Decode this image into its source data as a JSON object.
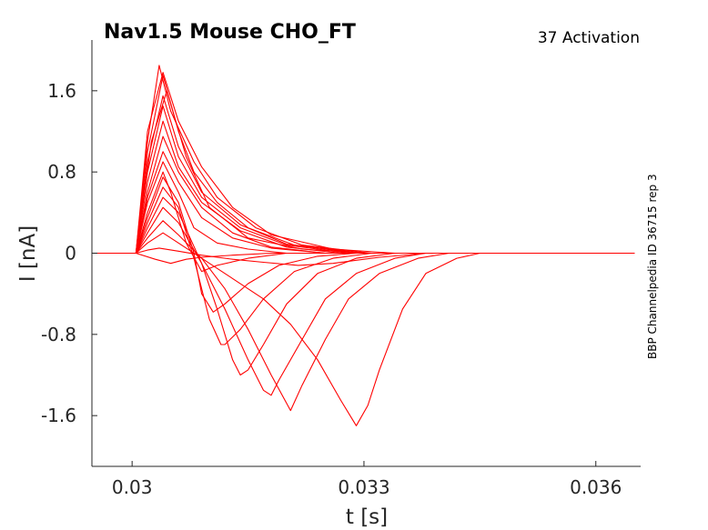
{
  "chart_data": {
    "type": "line",
    "title": "Nav1.5  Mouse  CHO_FT",
    "subtitle": "37  Activation",
    "side_note": "BBP Channelpedia ID 36715 rep 3",
    "xlabel": "t [s]",
    "ylabel": "I [nA]",
    "xlim": [
      0.02948,
      0.03658
    ],
    "ylim": [
      -2.1,
      2.1
    ],
    "x_ticks": [
      0.03,
      0.033,
      0.036
    ],
    "x_tick_labels": [
      "0.03",
      "0.033",
      "0.036"
    ],
    "y_ticks": [
      1.6,
      0.8,
      0,
      -0.8,
      -1.6
    ],
    "y_tick_labels": [
      "1.6",
      "0.8",
      "0",
      "-0.8",
      "-1.6"
    ],
    "grid": false,
    "line_color": "#ff0000",
    "series": [
      {
        "values": [
          [
            0.0295,
            0
          ],
          [
            0.03005,
            0
          ],
          [
            0.0303,
            -0.06
          ],
          [
            0.0305,
            -0.1
          ],
          [
            0.0307,
            -0.06
          ],
          [
            0.0309,
            -0.04
          ],
          [
            0.0313,
            -0.02
          ],
          [
            0.0318,
            0
          ],
          [
            0.0365,
            0
          ]
        ]
      },
      {
        "values": [
          [
            0.0295,
            0
          ],
          [
            0.03005,
            0
          ],
          [
            0.0302,
            0.03
          ],
          [
            0.03035,
            0.05
          ],
          [
            0.0306,
            0.02
          ],
          [
            0.0309,
            -0.02
          ],
          [
            0.0313,
            -0.06
          ],
          [
            0.0317,
            -0.09
          ],
          [
            0.03215,
            -0.12
          ],
          [
            0.0326,
            -0.1
          ],
          [
            0.0332,
            -0.04
          ],
          [
            0.0338,
            0
          ],
          [
            0.0365,
            0
          ]
        ]
      },
      {
        "values": [
          [
            0.0295,
            0
          ],
          [
            0.03005,
            0
          ],
          [
            0.0302,
            0.1
          ],
          [
            0.0304,
            0.2
          ],
          [
            0.0306,
            0.1
          ],
          [
            0.0309,
            -0.05
          ],
          [
            0.0313,
            -0.25
          ],
          [
            0.0317,
            -0.45
          ],
          [
            0.03205,
            -0.7
          ],
          [
            0.0324,
            -1.05
          ],
          [
            0.0327,
            -1.45
          ],
          [
            0.0329,
            -1.7
          ],
          [
            0.03305,
            -1.5
          ],
          [
            0.0332,
            -1.15
          ],
          [
            0.0335,
            -0.55
          ],
          [
            0.0338,
            -0.2
          ],
          [
            0.0342,
            -0.05
          ],
          [
            0.0345,
            0
          ],
          [
            0.0365,
            0
          ]
        ]
      },
      {
        "values": [
          [
            0.0295,
            0
          ],
          [
            0.03005,
            0
          ],
          [
            0.0302,
            0.15
          ],
          [
            0.0304,
            0.32
          ],
          [
            0.0306,
            0.18
          ],
          [
            0.0309,
            -0.05
          ],
          [
            0.0312,
            -0.35
          ],
          [
            0.0315,
            -0.75
          ],
          [
            0.0318,
            -1.2
          ],
          [
            0.03205,
            -1.55
          ],
          [
            0.0322,
            -1.3
          ],
          [
            0.0325,
            -0.85
          ],
          [
            0.0328,
            -0.45
          ],
          [
            0.0332,
            -0.2
          ],
          [
            0.0337,
            -0.05
          ],
          [
            0.0341,
            0
          ],
          [
            0.0365,
            0
          ]
        ]
      },
      {
        "values": [
          [
            0.0295,
            0
          ],
          [
            0.03005,
            0
          ],
          [
            0.0302,
            0.2
          ],
          [
            0.0304,
            0.45
          ],
          [
            0.0306,
            0.3
          ],
          [
            0.0309,
            -0.1
          ],
          [
            0.0312,
            -0.55
          ],
          [
            0.0315,
            -1.05
          ],
          [
            0.0317,
            -1.35
          ],
          [
            0.0318,
            -1.4
          ],
          [
            0.0319,
            -1.25
          ],
          [
            0.0322,
            -0.85
          ],
          [
            0.0325,
            -0.45
          ],
          [
            0.0329,
            -0.2
          ],
          [
            0.0334,
            -0.05
          ],
          [
            0.0338,
            0
          ],
          [
            0.0365,
            0
          ]
        ]
      },
      {
        "values": [
          [
            0.0295,
            0
          ],
          [
            0.03005,
            0
          ],
          [
            0.0302,
            0.25
          ],
          [
            0.0304,
            0.55
          ],
          [
            0.0306,
            0.4
          ],
          [
            0.0309,
            -0.1
          ],
          [
            0.0311,
            -0.55
          ],
          [
            0.0313,
            -1.05
          ],
          [
            0.0314,
            -1.2
          ],
          [
            0.0315,
            -1.15
          ],
          [
            0.0317,
            -0.9
          ],
          [
            0.032,
            -0.5
          ],
          [
            0.0324,
            -0.2
          ],
          [
            0.0329,
            -0.05
          ],
          [
            0.0334,
            0
          ],
          [
            0.0365,
            0
          ]
        ]
      },
      {
        "values": [
          [
            0.0295,
            0
          ],
          [
            0.03005,
            0
          ],
          [
            0.0302,
            0.3
          ],
          [
            0.0304,
            0.65
          ],
          [
            0.0306,
            0.45
          ],
          [
            0.0308,
            -0.05
          ],
          [
            0.031,
            -0.65
          ],
          [
            0.03115,
            -0.9
          ],
          [
            0.0312,
            -0.9
          ],
          [
            0.0314,
            -0.75
          ],
          [
            0.0317,
            -0.45
          ],
          [
            0.0321,
            -0.18
          ],
          [
            0.0326,
            -0.05
          ],
          [
            0.0331,
            0
          ],
          [
            0.0365,
            0
          ]
        ]
      },
      {
        "values": [
          [
            0.0295,
            0
          ],
          [
            0.03005,
            0
          ],
          [
            0.0302,
            0.35
          ],
          [
            0.0304,
            0.75
          ],
          [
            0.0306,
            0.5
          ],
          [
            0.0308,
            0
          ],
          [
            0.0309,
            -0.4
          ],
          [
            0.03105,
            -0.58
          ],
          [
            0.0312,
            -0.5
          ],
          [
            0.0315,
            -0.3
          ],
          [
            0.0319,
            -0.12
          ],
          [
            0.0324,
            -0.03
          ],
          [
            0.0329,
            0
          ],
          [
            0.0365,
            0
          ]
        ]
      },
      {
        "values": [
          [
            0.0295,
            0
          ],
          [
            0.03005,
            0
          ],
          [
            0.0302,
            0.4
          ],
          [
            0.0304,
            0.8
          ],
          [
            0.0305,
            0.6
          ],
          [
            0.0307,
            0.1
          ],
          [
            0.0309,
            -0.18
          ],
          [
            0.0311,
            -0.12
          ],
          [
            0.0315,
            -0.05
          ],
          [
            0.032,
            0
          ],
          [
            0.0365,
            0
          ]
        ]
      },
      {
        "values": [
          [
            0.0295,
            0
          ],
          [
            0.03005,
            0
          ],
          [
            0.0302,
            0.5
          ],
          [
            0.0304,
            0.9
          ],
          [
            0.0306,
            0.6
          ],
          [
            0.0308,
            0.25
          ],
          [
            0.0311,
            0.1
          ],
          [
            0.0315,
            0.04
          ],
          [
            0.032,
            0
          ],
          [
            0.0365,
            0
          ]
        ]
      },
      {
        "values": [
          [
            0.0295,
            0
          ],
          [
            0.03005,
            0
          ],
          [
            0.0302,
            0.55
          ],
          [
            0.0304,
            1.0
          ],
          [
            0.0306,
            0.7
          ],
          [
            0.0309,
            0.35
          ],
          [
            0.0313,
            0.15
          ],
          [
            0.0318,
            0.05
          ],
          [
            0.0325,
            0
          ],
          [
            0.0365,
            0
          ]
        ]
      },
      {
        "values": [
          [
            0.0295,
            0
          ],
          [
            0.03005,
            0
          ],
          [
            0.0302,
            0.6
          ],
          [
            0.0304,
            1.15
          ],
          [
            0.0306,
            0.8
          ],
          [
            0.0309,
            0.45
          ],
          [
            0.0313,
            0.2
          ],
          [
            0.0318,
            0.06
          ],
          [
            0.0325,
            0
          ],
          [
            0.0365,
            0
          ]
        ]
      },
      {
        "values": [
          [
            0.0295,
            0
          ],
          [
            0.03005,
            0
          ],
          [
            0.0302,
            0.7
          ],
          [
            0.0304,
            1.3
          ],
          [
            0.0306,
            0.85
          ],
          [
            0.0309,
            0.5
          ],
          [
            0.0314,
            0.22
          ],
          [
            0.032,
            0.06
          ],
          [
            0.0327,
            0
          ],
          [
            0.0365,
            0
          ]
        ]
      },
      {
        "values": [
          [
            0.0295,
            0
          ],
          [
            0.03005,
            0
          ],
          [
            0.0302,
            0.8
          ],
          [
            0.0304,
            1.45
          ],
          [
            0.0306,
            0.95
          ],
          [
            0.0309,
            0.55
          ],
          [
            0.0314,
            0.25
          ],
          [
            0.032,
            0.08
          ],
          [
            0.0328,
            0
          ],
          [
            0.0365,
            0
          ]
        ]
      },
      {
        "values": [
          [
            0.0295,
            0
          ],
          [
            0.03005,
            0
          ],
          [
            0.0302,
            0.9
          ],
          [
            0.0304,
            1.55
          ],
          [
            0.0306,
            1.05
          ],
          [
            0.0309,
            0.6
          ],
          [
            0.0314,
            0.28
          ],
          [
            0.032,
            0.09
          ],
          [
            0.0329,
            0
          ],
          [
            0.0365,
            0
          ]
        ]
      },
      {
        "values": [
          [
            0.0295,
            0
          ],
          [
            0.03005,
            0
          ],
          [
            0.03025,
            1.1
          ],
          [
            0.03045,
            1.6
          ],
          [
            0.0307,
            0.95
          ],
          [
            0.031,
            0.45
          ],
          [
            0.0315,
            0.15
          ],
          [
            0.0322,
            0.04
          ],
          [
            0.033,
            0
          ],
          [
            0.0365,
            0
          ]
        ]
      },
      {
        "values": [
          [
            0.0295,
            0
          ],
          [
            0.03005,
            0
          ],
          [
            0.0302,
            1.0
          ],
          [
            0.0304,
            1.75
          ],
          [
            0.0306,
            1.2
          ],
          [
            0.0308,
            0.8
          ],
          [
            0.0311,
            0.5
          ],
          [
            0.0315,
            0.25
          ],
          [
            0.0321,
            0.08
          ],
          [
            0.033,
            0
          ],
          [
            0.0365,
            0
          ]
        ]
      },
      {
        "values": [
          [
            0.0295,
            0
          ],
          [
            0.03005,
            0
          ],
          [
            0.0302,
            1.1
          ],
          [
            0.03035,
            1.85
          ],
          [
            0.0305,
            1.4
          ],
          [
            0.0308,
            0.9
          ],
          [
            0.0311,
            0.55
          ],
          [
            0.0316,
            0.25
          ],
          [
            0.0322,
            0.08
          ],
          [
            0.0331,
            0
          ],
          [
            0.0365,
            0
          ]
        ]
      },
      {
        "values": [
          [
            0.0295,
            0
          ],
          [
            0.03005,
            0
          ],
          [
            0.0302,
            1.2
          ],
          [
            0.0304,
            1.78
          ],
          [
            0.0306,
            1.3
          ],
          [
            0.0309,
            0.85
          ],
          [
            0.0313,
            0.45
          ],
          [
            0.0318,
            0.18
          ],
          [
            0.0326,
            0.04
          ],
          [
            0.0334,
            0
          ],
          [
            0.0365,
            0
          ]
        ]
      }
    ]
  }
}
